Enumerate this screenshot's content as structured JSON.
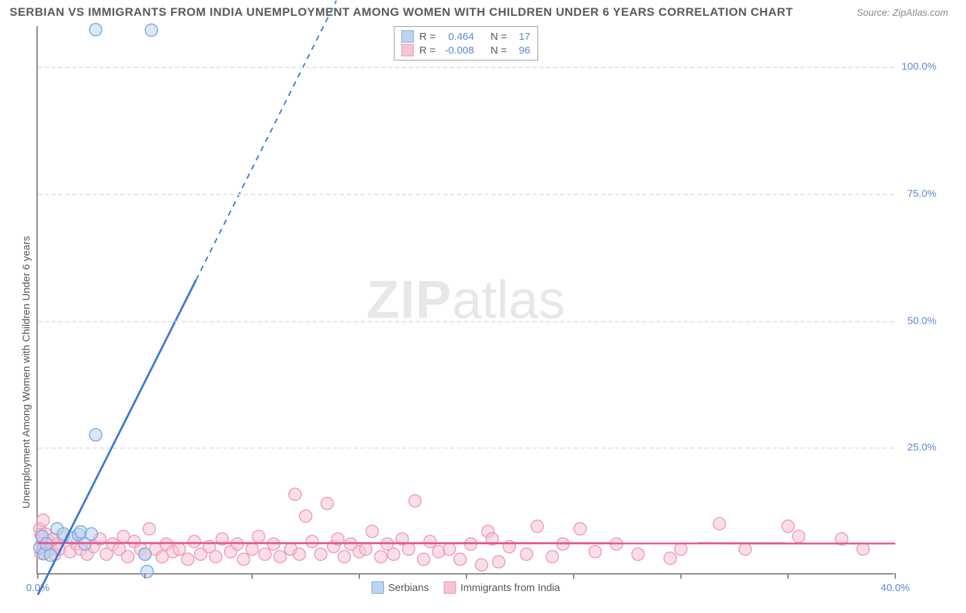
{
  "title": "SERBIAN VS IMMIGRANTS FROM INDIA UNEMPLOYMENT AMONG WOMEN WITH CHILDREN UNDER 6 YEARS CORRELATION CHART",
  "source": "Source: ZipAtlas.com",
  "watermark_bold": "ZIP",
  "watermark_light": "atlas",
  "ylabel": "Unemployment Among Women with Children Under 6 years",
  "chart": {
    "type": "scatter",
    "xlim": [
      0,
      40
    ],
    "ylim": [
      0,
      108
    ],
    "xtick_positions": [
      0,
      5,
      10,
      15,
      20,
      25,
      30,
      35,
      40
    ],
    "xtick_labels": {
      "0": "0.0%",
      "40": "40.0%"
    },
    "yticks": [
      25,
      50,
      75,
      100
    ],
    "ytick_labels": [
      "25.0%",
      "50.0%",
      "75.0%",
      "100.0%"
    ],
    "grid_color": "#e5e5e5",
    "axis_color": "#888888",
    "label_color": "#5b88d6",
    "background_color": "#ffffff",
    "marker_radius": 9,
    "marker_stroke_width": 1.5,
    "series": [
      {
        "name": "Serbians",
        "fill": "#bcd4f0",
        "stroke": "#7ba7e0",
        "fill_opacity": 0.55,
        "r_value": "0.464",
        "n_value": "17",
        "r_label": "R =",
        "n_label": "N =",
        "trend": {
          "slope": 8.4,
          "intercept": -4,
          "color": "#3c78d8",
          "width": 3
        },
        "points": [
          [
            0.1,
            5.3
          ],
          [
            0.2,
            7.5
          ],
          [
            0.3,
            4.1
          ],
          [
            0.4,
            6.0
          ],
          [
            0.6,
            3.8
          ],
          [
            0.9,
            9.0
          ],
          [
            1.2,
            8.0
          ],
          [
            1.6,
            7.2
          ],
          [
            1.9,
            7.9
          ],
          [
            2.0,
            8.4
          ],
          [
            2.2,
            6.0
          ],
          [
            2.5,
            8.0
          ],
          [
            2.7,
            27.5
          ],
          [
            2.7,
            107.3
          ],
          [
            5.0,
            4.0
          ],
          [
            5.1,
            0.6
          ],
          [
            5.3,
            107.2
          ]
        ]
      },
      {
        "name": "Immigrants from India",
        "fill": "#f6c4d4",
        "stroke": "#ef9ab5",
        "fill_opacity": 0.55,
        "r_value": "-0.008",
        "n_value": "96",
        "r_label": "R =",
        "n_label": "N =",
        "trend": {
          "slope": -0.002,
          "intercept": 6.2,
          "color": "#e75891",
          "width": 3
        },
        "points": [
          [
            0.1,
            9.0
          ],
          [
            0.15,
            4.2
          ],
          [
            0.15,
            7.9
          ],
          [
            0.2,
            6.1
          ],
          [
            0.25,
            10.7
          ],
          [
            0.3,
            5.4
          ],
          [
            0.35,
            8.0
          ],
          [
            0.4,
            4.5
          ],
          [
            0.5,
            6.6
          ],
          [
            0.6,
            5.0
          ],
          [
            0.7,
            7.0
          ],
          [
            0.8,
            4.0
          ],
          [
            0.9,
            6.0
          ],
          [
            1.0,
            5.0
          ],
          [
            1.2,
            7.5
          ],
          [
            1.5,
            4.5
          ],
          [
            1.8,
            6.0
          ],
          [
            2.0,
            5.0
          ],
          [
            2.3,
            4.0
          ],
          [
            2.6,
            5.5
          ],
          [
            2.9,
            7.0
          ],
          [
            3.2,
            4.0
          ],
          [
            3.5,
            6.0
          ],
          [
            3.8,
            5.0
          ],
          [
            4.0,
            7.5
          ],
          [
            4.2,
            3.5
          ],
          [
            4.5,
            6.5
          ],
          [
            4.8,
            5.0
          ],
          [
            5.0,
            4.0
          ],
          [
            5.2,
            9.0
          ],
          [
            5.5,
            5.0
          ],
          [
            5.8,
            3.5
          ],
          [
            6.0,
            6.0
          ],
          [
            6.3,
            4.5
          ],
          [
            6.6,
            5.0
          ],
          [
            7.0,
            3.0
          ],
          [
            7.3,
            6.5
          ],
          [
            7.6,
            4.0
          ],
          [
            8.0,
            5.5
          ],
          [
            8.3,
            3.5
          ],
          [
            8.6,
            7.0
          ],
          [
            9.0,
            4.5
          ],
          [
            9.3,
            6.0
          ],
          [
            9.6,
            3.0
          ],
          [
            10.0,
            5.0
          ],
          [
            10.3,
            7.5
          ],
          [
            10.6,
            4.0
          ],
          [
            11.0,
            6.0
          ],
          [
            11.3,
            3.5
          ],
          [
            11.8,
            5.0
          ],
          [
            12.0,
            15.8
          ],
          [
            12.2,
            4.0
          ],
          [
            12.5,
            11.5
          ],
          [
            12.8,
            6.5
          ],
          [
            13.2,
            4.0
          ],
          [
            13.5,
            14.0
          ],
          [
            13.8,
            5.5
          ],
          [
            14.0,
            7.0
          ],
          [
            14.3,
            3.5
          ],
          [
            14.6,
            6.0
          ],
          [
            15.0,
            4.5
          ],
          [
            15.3,
            5.0
          ],
          [
            15.6,
            8.5
          ],
          [
            16.0,
            3.5
          ],
          [
            16.3,
            6.0
          ],
          [
            16.6,
            4.0
          ],
          [
            17.0,
            7.0
          ],
          [
            17.3,
            5.0
          ],
          [
            17.6,
            14.5
          ],
          [
            18.0,
            3.0
          ],
          [
            18.3,
            6.5
          ],
          [
            18.7,
            4.5
          ],
          [
            19.2,
            5.0
          ],
          [
            19.7,
            3.0
          ],
          [
            20.2,
            6.0
          ],
          [
            20.7,
            1.9
          ],
          [
            21.0,
            8.5
          ],
          [
            21.2,
            7.0
          ],
          [
            21.5,
            2.5
          ],
          [
            22.0,
            5.5
          ],
          [
            22.8,
            4.0
          ],
          [
            23.3,
            9.5
          ],
          [
            24.0,
            3.5
          ],
          [
            24.5,
            6.0
          ],
          [
            25.3,
            9.0
          ],
          [
            26.0,
            4.5
          ],
          [
            27.0,
            6.0
          ],
          [
            28.0,
            4.0
          ],
          [
            29.5,
            3.2
          ],
          [
            30.0,
            5.0
          ],
          [
            31.8,
            10.0
          ],
          [
            33.0,
            5.0
          ],
          [
            35.0,
            9.5
          ],
          [
            35.5,
            7.5
          ],
          [
            37.5,
            7.0
          ],
          [
            38.5,
            5.0
          ]
        ]
      }
    ]
  }
}
